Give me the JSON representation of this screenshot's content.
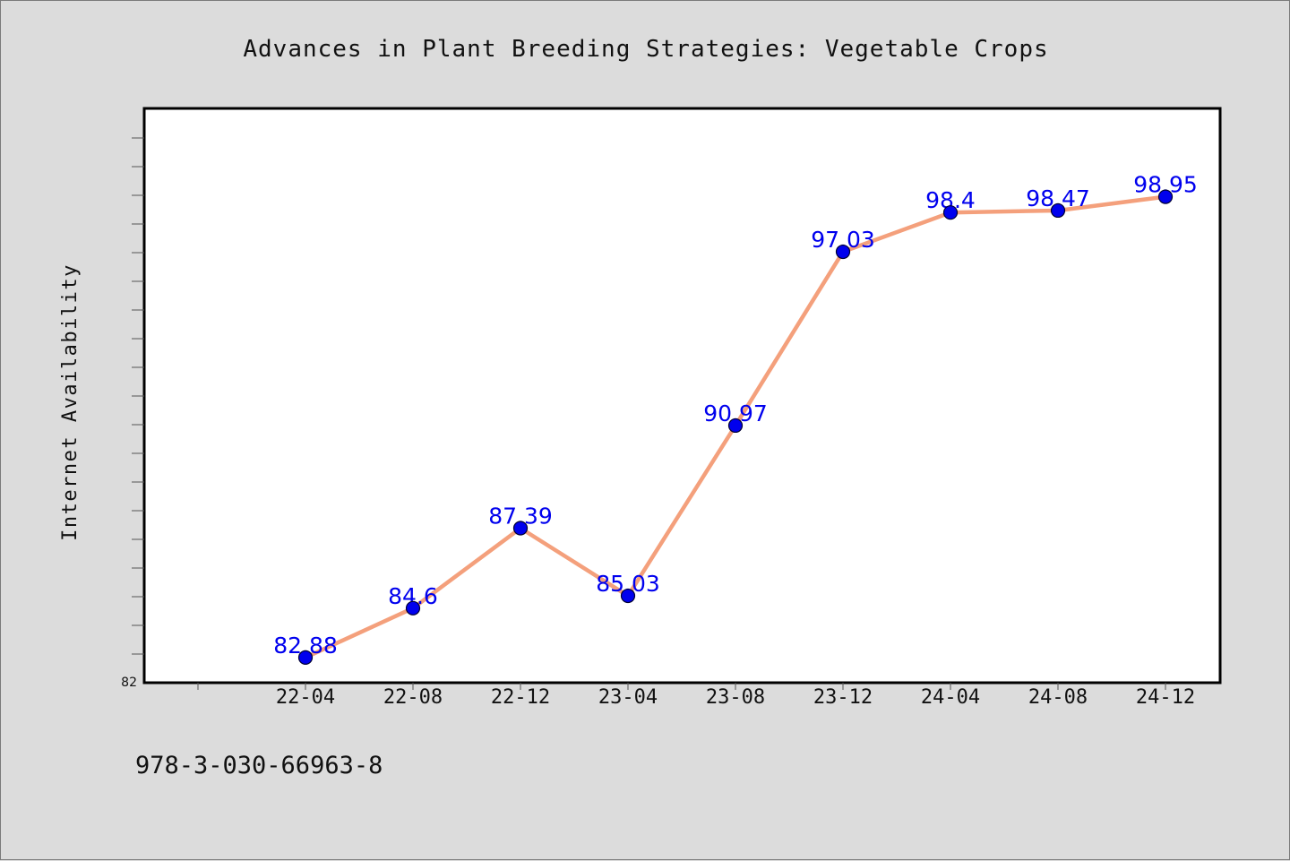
{
  "chart_data": {
    "type": "line",
    "title": "Advances in Plant Breeding Strategies: Vegetable Crops",
    "xlabel": "",
    "ylabel": "Internet Availability",
    "categories": [
      "22-04",
      "22-08",
      "22-12",
      "23-04",
      "23-08",
      "23-12",
      "24-04",
      "24-08",
      "24-12"
    ],
    "series": [
      {
        "values": [
          82.88,
          84.6,
          87.39,
          85.03,
          90.97,
          97.03,
          98.4,
          98.47,
          98.95
        ]
      }
    ],
    "data_labels": [
      "82.88",
      "84.6",
      "87.39",
      "85.03",
      "90.97",
      "97.03",
      "98.4",
      "98.47",
      "98.95"
    ],
    "ylim": [
      82,
      102
    ],
    "yticks_labeled": [
      "82"
    ],
    "grid": false,
    "legend": "none",
    "colors": {
      "line": "#f4a07c",
      "marker_fill": "#0000ee",
      "marker_stroke": "#000033",
      "data_label": "#0000ee",
      "plot_background": "#ffffff",
      "page_background": "#dcdcdc"
    }
  },
  "footer": {
    "code": "978-3-030-66963-8"
  }
}
